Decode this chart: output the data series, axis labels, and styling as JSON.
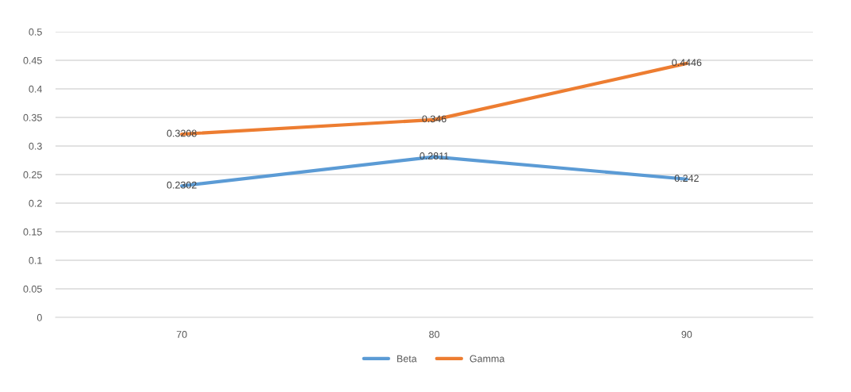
{
  "chart_data": {
    "type": "line",
    "categories": [
      "70",
      "80",
      "90"
    ],
    "series": [
      {
        "name": "Beta",
        "color": "#5b9bd5",
        "values": [
          0.2302,
          0.2811,
          0.242
        ]
      },
      {
        "name": "Gamma",
        "color": "#ed7d31",
        "values": [
          0.3208,
          0.346,
          0.4446
        ]
      }
    ],
    "ylim": [
      0,
      0.5
    ],
    "yticks": [
      0,
      0.05,
      0.1,
      0.15,
      0.2,
      0.25,
      0.3,
      0.35,
      0.4,
      0.45,
      0.5
    ],
    "grid": "y",
    "legend": "bottom",
    "data_labels": true,
    "marker": "none",
    "line_style": "solid"
  }
}
